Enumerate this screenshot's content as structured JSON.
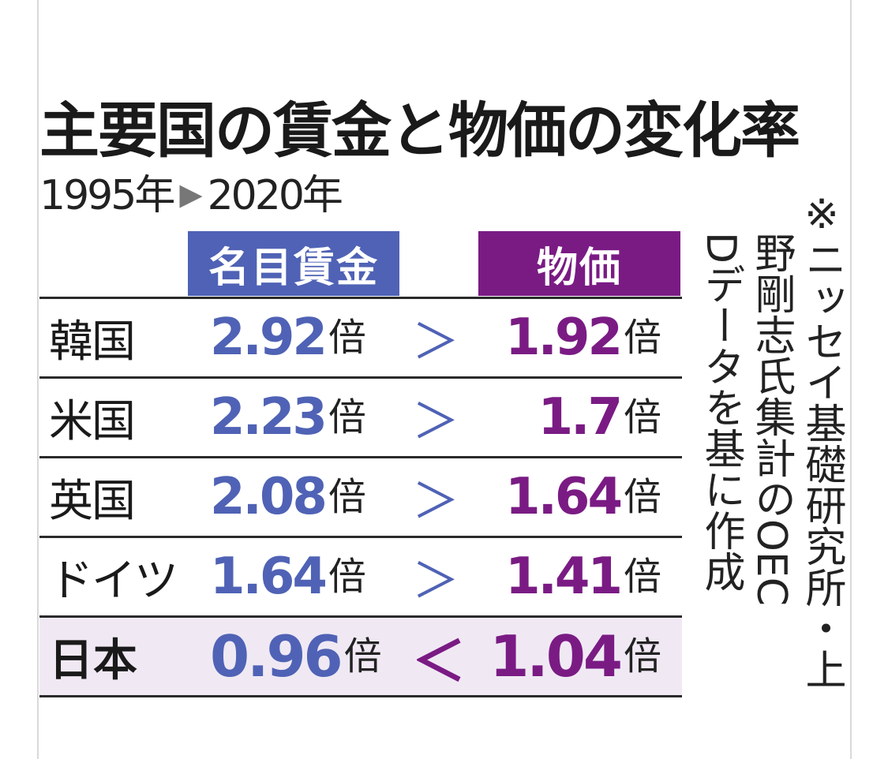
{
  "chart_data": {
    "type": "table",
    "title": "主要国の賃金と物価の変化率",
    "period": {
      "from": "1995年",
      "arrow": "▶",
      "to": "2020年"
    },
    "columns": [
      "名目賃金",
      "物価"
    ],
    "unit": "倍",
    "rows": [
      {
        "country": "韓国",
        "wage": "2.92",
        "comparison": "＞",
        "price": "1.92"
      },
      {
        "country": "米国",
        "wage": "2.23",
        "comparison": "＞",
        "price": "1.7"
      },
      {
        "country": "英国",
        "wage": "2.08",
        "comparison": "＞",
        "price": "1.64"
      },
      {
        "country": "ドイツ",
        "wage": "1.64",
        "comparison": "＞",
        "price": "1.41"
      },
      {
        "country": "日本",
        "wage": "0.96",
        "comparison": "＜",
        "price": "1.04"
      }
    ],
    "note_lines": [
      "※ニッセイ基礎研究所・上",
      "野剛志氏集計のOEC",
      "Dデータを基に作成"
    ],
    "colors": {
      "wage": "#4f62b5",
      "price": "#7a1b84",
      "highlight_row": "#f0e9f4"
    }
  }
}
